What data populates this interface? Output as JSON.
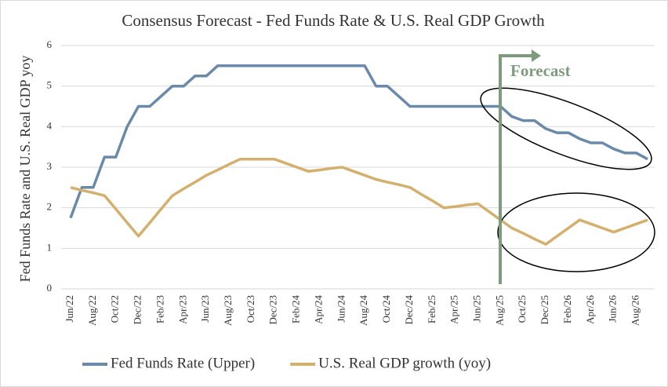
{
  "chart_data": {
    "type": "line",
    "title": "Consensus Forecast - Fed Funds Rate & U.S. Real GDP Growth",
    "y_label": "Fed Funds Rate and U.S. Real GDP yoy",
    "annotation": "Forecast",
    "categories": [
      "Jun/22",
      null,
      "Aug/22",
      null,
      "Oct/22",
      null,
      "Dec/22",
      null,
      "Feb/23",
      null,
      "Apr/23",
      null,
      "Jun/23",
      null,
      "Aug/23",
      null,
      "Oct/23",
      null,
      "Dec/23",
      null,
      "Feb/24",
      null,
      "Apr/24",
      null,
      "Jun/24",
      null,
      "Aug/24",
      null,
      "Oct/24",
      null,
      "Dec/24",
      null,
      "Feb/25",
      null,
      "Apr/25",
      null,
      "Jun/25",
      null,
      "Aug/25",
      null,
      "Oct/25",
      null,
      "Dec/25",
      null,
      "Feb/26",
      null,
      "Apr/26",
      null,
      "Jun/26",
      null,
      "Aug/26",
      null
    ],
    "series": [
      {
        "name": "Fed Funds Rate (Upper)",
        "color": "#6b8aaa",
        "values": [
          1.75,
          2.5,
          2.5,
          3.25,
          3.25,
          4.0,
          4.5,
          4.5,
          4.75,
          5.0,
          5.0,
          5.25,
          5.25,
          5.5,
          5.5,
          5.5,
          5.5,
          5.5,
          5.5,
          5.5,
          5.5,
          5.5,
          5.5,
          5.5,
          5.5,
          5.5,
          5.5,
          5.0,
          5.0,
          4.75,
          4.5,
          4.5,
          4.5,
          4.5,
          4.5,
          4.5,
          4.5,
          4.5,
          4.5,
          4.25,
          4.15,
          4.15,
          3.95,
          3.85,
          3.85,
          3.7,
          3.6,
          3.6,
          3.45,
          3.35,
          3.35,
          3.2
        ]
      },
      {
        "name": "U.S. Real GDP growth (yoy)",
        "color": "#d4b06e",
        "values": [
          2.5,
          2.43,
          2.37,
          2.3,
          1.97,
          1.63,
          1.3,
          1.63,
          1.97,
          2.3,
          2.47,
          2.63,
          2.8,
          2.93,
          3.07,
          3.2,
          3.2,
          3.2,
          3.2,
          3.1,
          3.0,
          2.9,
          2.93,
          2.97,
          3.0,
          2.9,
          2.8,
          2.7,
          2.63,
          2.57,
          2.5,
          2.33,
          2.17,
          2.0,
          2.03,
          2.07,
          2.1,
          1.9,
          1.7,
          1.5,
          1.37,
          1.23,
          1.1,
          1.3,
          1.5,
          1.7,
          1.6,
          1.5,
          1.4,
          1.5,
          1.6,
          1.7
        ]
      }
    ],
    "ylim": [
      0,
      6
    ],
    "yticks": [
      0,
      1,
      2,
      3,
      4,
      5,
      6
    ],
    "grid": true,
    "legend": "bottom"
  }
}
